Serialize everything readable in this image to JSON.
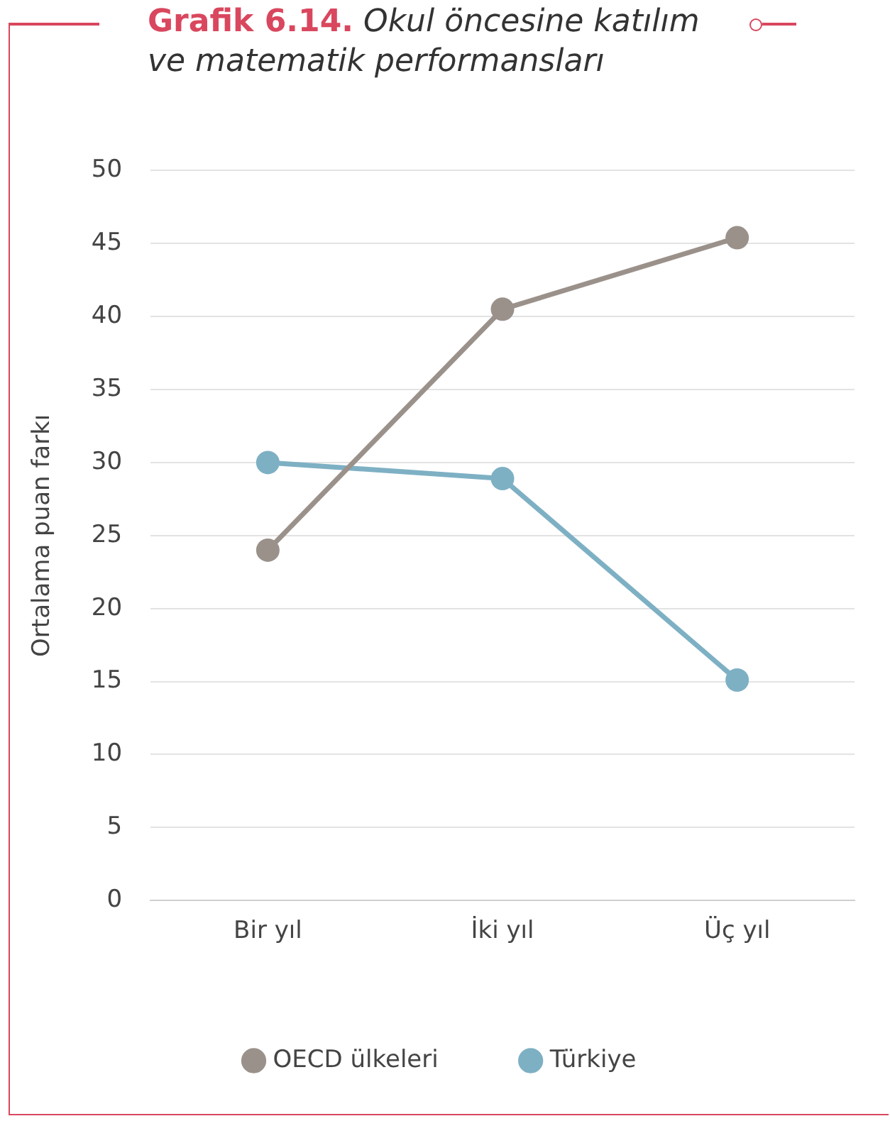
{
  "chart_data": {
    "type": "line",
    "title": "Grafik 6.14.",
    "subtitle": "Okul öncesine katılım ve matematik performansları",
    "ylabel": "Ortalama puan farkı",
    "categories": [
      "Bir yıl",
      "İki yıl",
      "Üç yıl"
    ],
    "series": [
      {
        "name": "OECD ülkeleri",
        "color": "#9b918b",
        "values": [
          24,
          40.5,
          45.4
        ]
      },
      {
        "name": "Türkiye",
        "color": "#7eb0c4",
        "values": [
          30,
          28.9,
          15.1
        ]
      }
    ],
    "ylim": [
      0,
      50
    ],
    "yticks": [
      0,
      5,
      10,
      15,
      20,
      25,
      30,
      35,
      40,
      45,
      50
    ],
    "grid": "y",
    "legend": "bottom",
    "marker": "circle",
    "line_style": "solid"
  }
}
